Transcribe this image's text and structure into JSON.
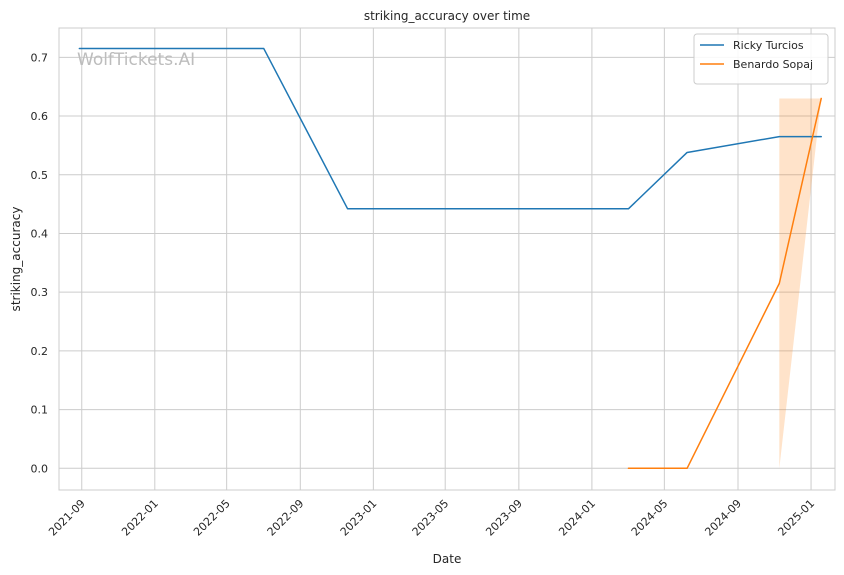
{
  "chart_data": {
    "type": "line",
    "title": "striking_accuracy over time",
    "xlabel": "Date",
    "ylabel": "striking_accuracy",
    "watermark": "WolfTickets.AI",
    "x_tick_labels": [
      "2021-09",
      "2022-01",
      "2022-05",
      "2022-09",
      "2023-01",
      "2023-05",
      "2023-09",
      "2024-01",
      "2024-05",
      "2024-09",
      "2025-01"
    ],
    "x_tick_dates": [
      "2021-09-01",
      "2022-01-01",
      "2022-05-01",
      "2022-09-01",
      "2023-01-01",
      "2023-05-01",
      "2023-09-01",
      "2024-01-01",
      "2024-05-01",
      "2024-09-01",
      "2025-01-01"
    ],
    "y_ticks": [
      0.0,
      0.1,
      0.2,
      0.3,
      0.4,
      0.5,
      0.6,
      0.7
    ],
    "y_tick_labels": [
      "0.0",
      "0.1",
      "0.2",
      "0.3",
      "0.4",
      "0.5",
      "0.6",
      "0.7"
    ],
    "xlim": [
      "2021-07-25",
      "2025-02-10"
    ],
    "ylim": [
      -0.037,
      0.75
    ],
    "grid": true,
    "legend_position": "top-right",
    "series": [
      {
        "name": "Ricky Turcios",
        "color": "#1f77b4",
        "points": [
          {
            "x": "2021-08-28",
            "y": 0.715
          },
          {
            "x": "2022-07-02",
            "y": 0.715
          },
          {
            "x": "2022-11-19",
            "y": 0.442
          },
          {
            "x": "2024-03-02",
            "y": 0.442
          },
          {
            "x": "2024-06-08",
            "y": 0.538
          },
          {
            "x": "2024-11-09",
            "y": 0.565
          },
          {
            "x": "2025-01-18",
            "y": 0.565
          }
        ]
      },
      {
        "name": "Benardo Sopaj",
        "color": "#ff7f0e",
        "points": [
          {
            "x": "2024-03-02",
            "y": 0.0
          },
          {
            "x": "2024-06-08",
            "y": 0.0
          },
          {
            "x": "2024-11-09",
            "y": 0.315
          },
          {
            "x": "2025-01-18",
            "y": 0.63
          }
        ],
        "band": [
          {
            "x": "2024-11-09",
            "low": 0.0,
            "high": 0.63
          },
          {
            "x": "2025-01-18",
            "low": 0.63,
            "high": 0.63
          }
        ]
      }
    ]
  }
}
